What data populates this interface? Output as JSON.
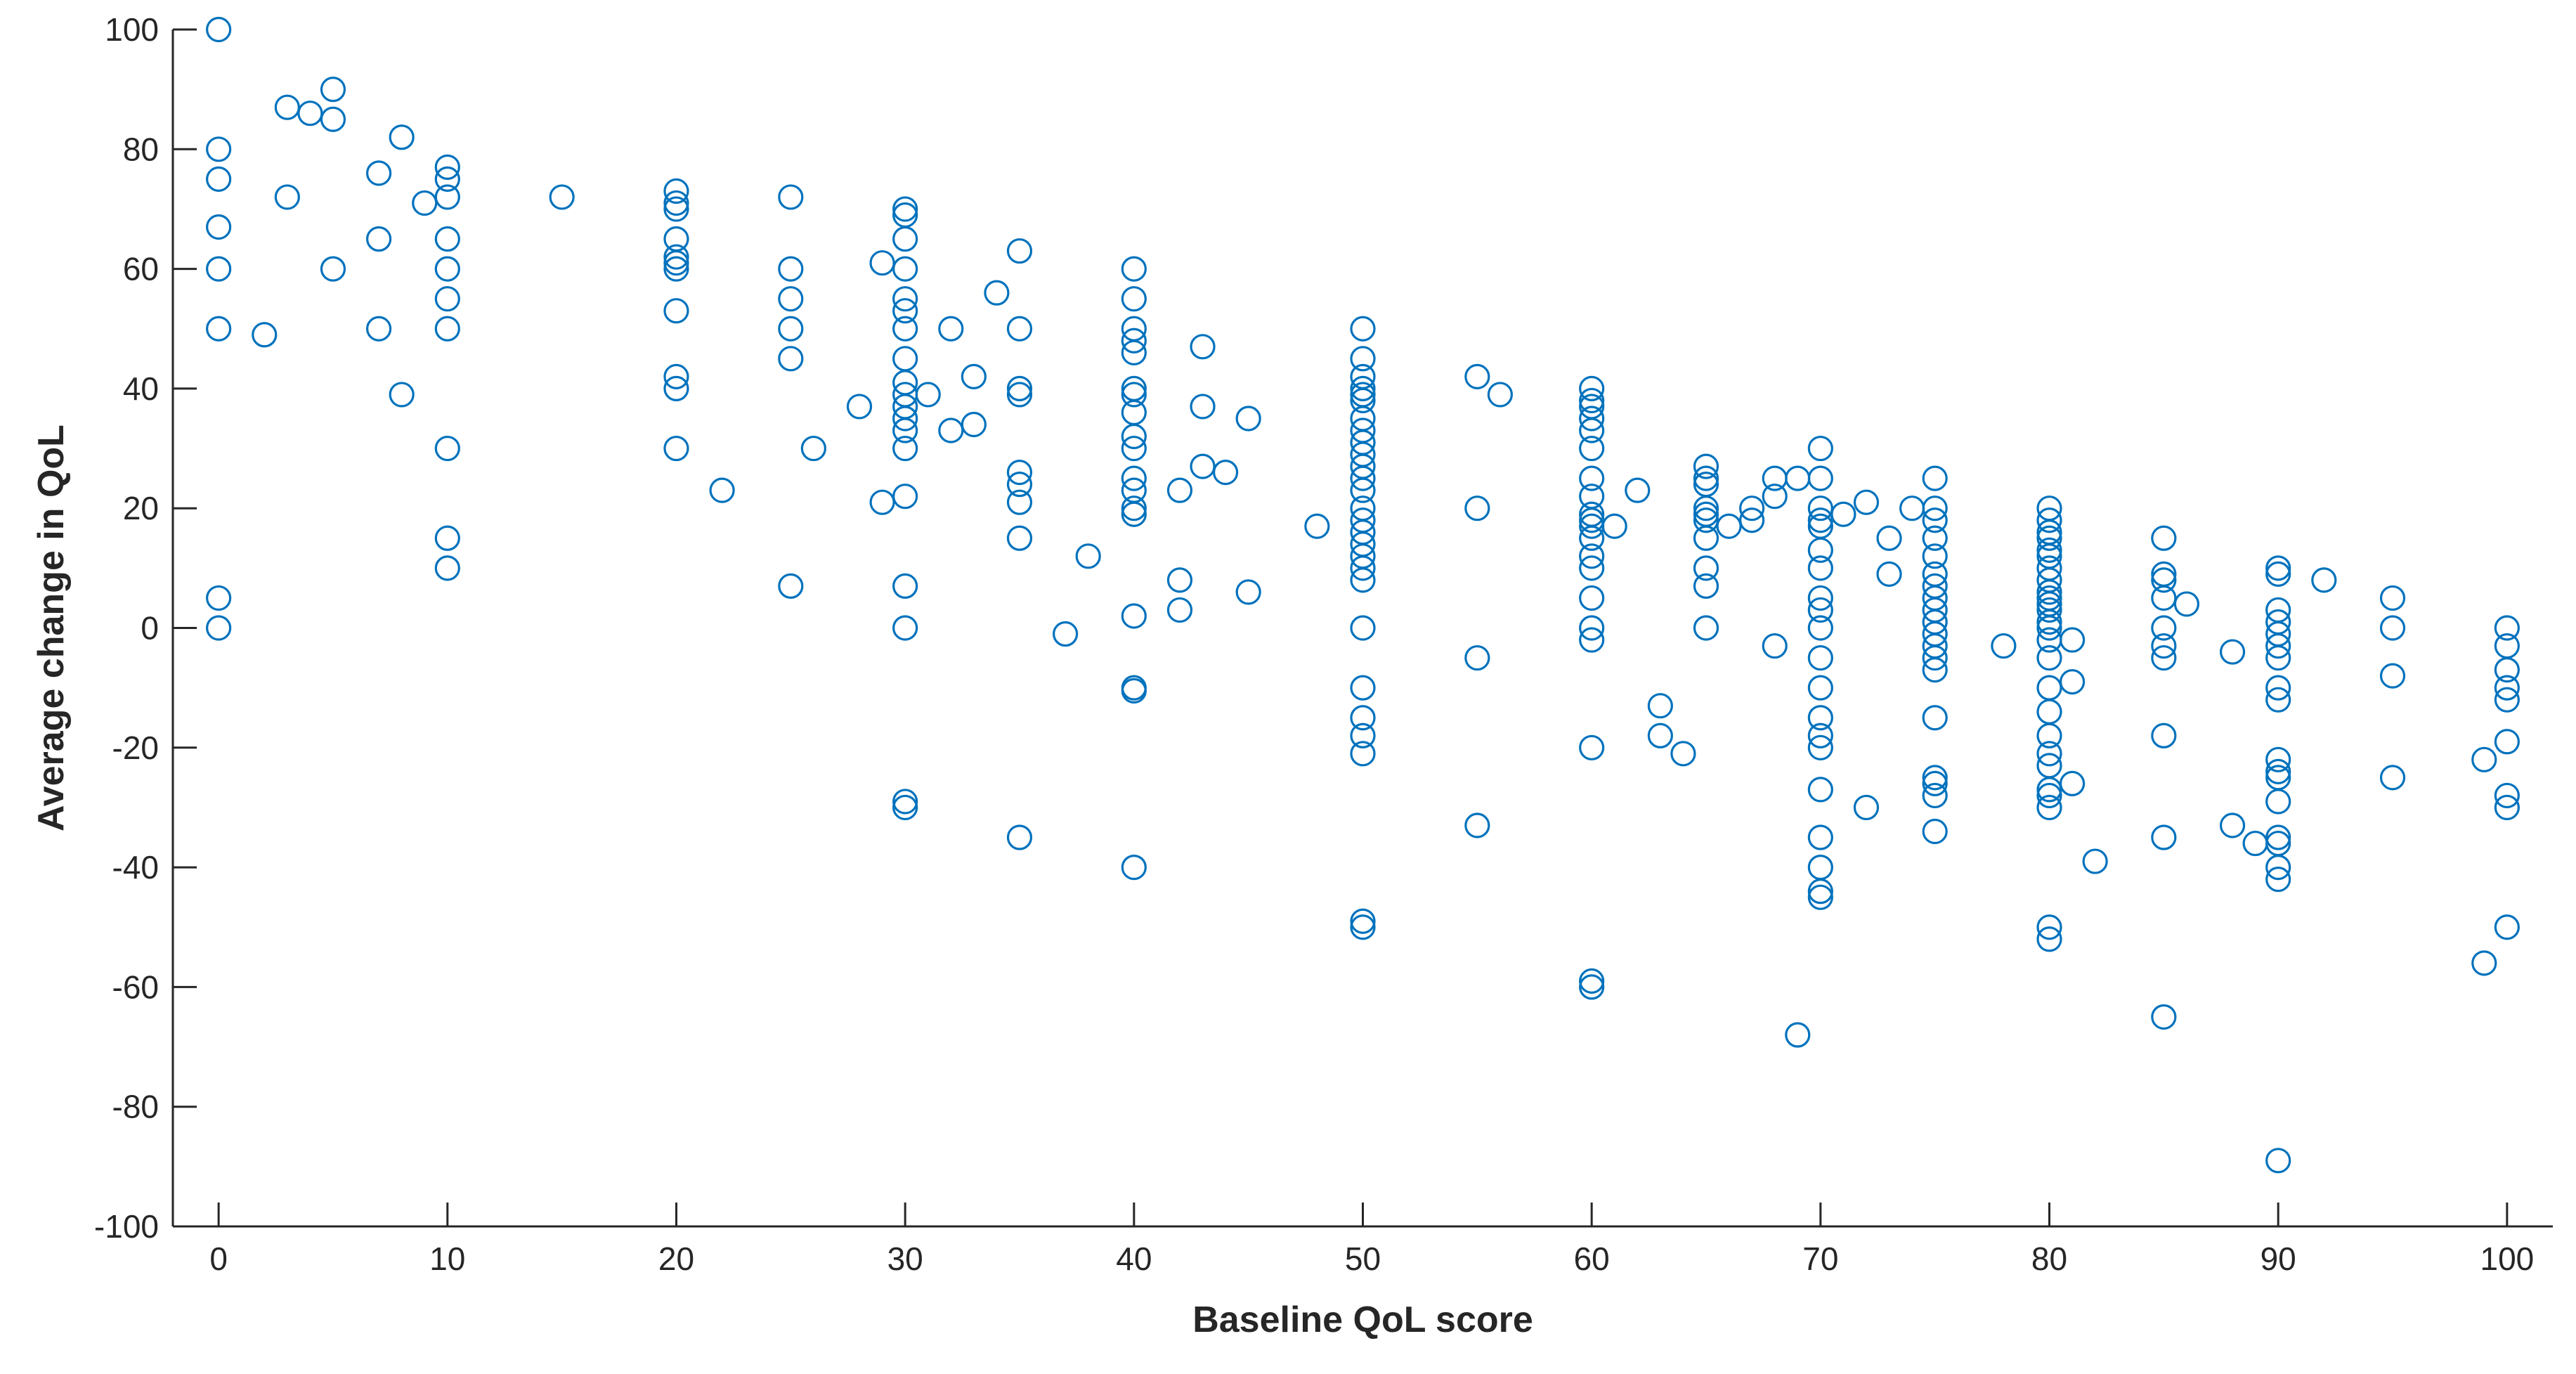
{
  "chart_data": {
    "type": "scatter",
    "title": "",
    "xlabel": "Baseline QoL score",
    "ylabel": "Average change in QoL",
    "xlim": [
      -2,
      102
    ],
    "ylim": [
      -100,
      100
    ],
    "x_ticks": [
      0,
      10,
      20,
      30,
      40,
      50,
      60,
      70,
      80,
      90,
      100
    ],
    "y_ticks": [
      100,
      80,
      60,
      40,
      20,
      0,
      -20,
      -40,
      -60,
      -80,
      -100
    ],
    "x_tick_labels": [
      "0",
      "10",
      "20",
      "30",
      "40",
      "50",
      "60",
      "70",
      "80",
      "90",
      "100"
    ],
    "y_tick_labels": [
      "100",
      "80",
      "60",
      "40",
      "20",
      "0",
      "-20",
      "-40",
      "-60",
      "-80",
      "-100"
    ],
    "grid": false,
    "legend": "none",
    "marker": "open-circle",
    "color": "#0072BD",
    "series": [
      {
        "points": [
          [
            0,
            100
          ],
          [
            0,
            80
          ],
          [
            0,
            75
          ],
          [
            0,
            67
          ],
          [
            0,
            60
          ],
          [
            0,
            50
          ],
          [
            0,
            5
          ],
          [
            0,
            0
          ],
          [
            2,
            49
          ],
          [
            3,
            87
          ],
          [
            3,
            72
          ],
          [
            4,
            86
          ],
          [
            5,
            90
          ],
          [
            5,
            85
          ],
          [
            5,
            60
          ],
          [
            7,
            76
          ],
          [
            7,
            65
          ],
          [
            7,
            50
          ],
          [
            8,
            82
          ],
          [
            8,
            39
          ],
          [
            9,
            71
          ],
          [
            10,
            77
          ],
          [
            10,
            75
          ],
          [
            10,
            72
          ],
          [
            10,
            65
          ],
          [
            10,
            60
          ],
          [
            10,
            55
          ],
          [
            10,
            50
          ],
          [
            10,
            30
          ],
          [
            10,
            15
          ],
          [
            10,
            10
          ],
          [
            15,
            72
          ],
          [
            20,
            73
          ],
          [
            20,
            71
          ],
          [
            20,
            70
          ],
          [
            20,
            65
          ],
          [
            20,
            62
          ],
          [
            20,
            61
          ],
          [
            20,
            60
          ],
          [
            20,
            53
          ],
          [
            20,
            42
          ],
          [
            20,
            40
          ],
          [
            20,
            30
          ],
          [
            22,
            23
          ],
          [
            25,
            72
          ],
          [
            25,
            60
          ],
          [
            25,
            55
          ],
          [
            25,
            50
          ],
          [
            25,
            45
          ],
          [
            25,
            7
          ],
          [
            26,
            30
          ],
          [
            28,
            37
          ],
          [
            29,
            61
          ],
          [
            29,
            21
          ],
          [
            30,
            70
          ],
          [
            30,
            69
          ],
          [
            30,
            65
          ],
          [
            30,
            60
          ],
          [
            30,
            55
          ],
          [
            30,
            53
          ],
          [
            30,
            50
          ],
          [
            30,
            45
          ],
          [
            30,
            41
          ],
          [
            30,
            39
          ],
          [
            30,
            37
          ],
          [
            30,
            35
          ],
          [
            30,
            33
          ],
          [
            30,
            30
          ],
          [
            30,
            22
          ],
          [
            30,
            7
          ],
          [
            30,
            0
          ],
          [
            30,
            -29
          ],
          [
            30,
            -30
          ],
          [
            31,
            39
          ],
          [
            32,
            50
          ],
          [
            32,
            33
          ],
          [
            33,
            42
          ],
          [
            33,
            34
          ],
          [
            34,
            56
          ],
          [
            35,
            63
          ],
          [
            35,
            50
          ],
          [
            35,
            40
          ],
          [
            35,
            39
          ],
          [
            35,
            26
          ],
          [
            35,
            24
          ],
          [
            35,
            21
          ],
          [
            35,
            15
          ],
          [
            35,
            -35
          ],
          [
            37,
            -1
          ],
          [
            38,
            12
          ],
          [
            40,
            60
          ],
          [
            40,
            55
          ],
          [
            40,
            50
          ],
          [
            40,
            48
          ],
          [
            40,
            46
          ],
          [
            40,
            40
          ],
          [
            40,
            39
          ],
          [
            40,
            36
          ],
          [
            40,
            32
          ],
          [
            40,
            30
          ],
          [
            40,
            25
          ],
          [
            40,
            23
          ],
          [
            40,
            20
          ],
          [
            40,
            19
          ],
          [
            40,
            2
          ],
          [
            40,
            -10
          ],
          [
            40,
            -10.5
          ],
          [
            40,
            -40
          ],
          [
            42,
            23
          ],
          [
            42,
            8
          ],
          [
            42,
            3
          ],
          [
            43,
            47
          ],
          [
            43,
            37
          ],
          [
            43,
            27
          ],
          [
            44,
            26
          ],
          [
            45,
            35
          ],
          [
            45,
            6
          ],
          [
            48,
            17
          ],
          [
            50,
            50
          ],
          [
            50,
            45
          ],
          [
            50,
            42
          ],
          [
            50,
            40
          ],
          [
            50,
            39
          ],
          [
            50,
            38
          ],
          [
            50,
            35
          ],
          [
            50,
            33
          ],
          [
            50,
            31
          ],
          [
            50,
            29
          ],
          [
            50,
            27
          ],
          [
            50,
            25
          ],
          [
            50,
            23
          ],
          [
            50,
            20
          ],
          [
            50,
            18
          ],
          [
            50,
            16
          ],
          [
            50,
            14
          ],
          [
            50,
            12
          ],
          [
            50,
            10
          ],
          [
            50,
            8
          ],
          [
            50,
            0
          ],
          [
            50,
            -10
          ],
          [
            50,
            -15
          ],
          [
            50,
            -18
          ],
          [
            50,
            -21
          ],
          [
            50,
            -49
          ],
          [
            50,
            -50
          ],
          [
            55,
            42
          ],
          [
            55,
            20
          ],
          [
            55,
            -5
          ],
          [
            55,
            -33
          ],
          [
            56,
            39
          ],
          [
            60,
            40
          ],
          [
            60,
            38
          ],
          [
            60,
            37
          ],
          [
            60,
            35
          ],
          [
            60,
            33
          ],
          [
            60,
            30
          ],
          [
            60,
            25
          ],
          [
            60,
            22
          ],
          [
            60,
            19
          ],
          [
            60,
            18
          ],
          [
            60,
            17
          ],
          [
            60,
            15
          ],
          [
            60,
            12
          ],
          [
            60,
            10
          ],
          [
            60,
            5
          ],
          [
            60,
            0
          ],
          [
            60,
            -2
          ],
          [
            60,
            -20
          ],
          [
            60,
            -59
          ],
          [
            60,
            -60
          ],
          [
            61,
            17
          ],
          [
            62,
            23
          ],
          [
            63,
            -13
          ],
          [
            63,
            -18
          ],
          [
            64,
            -21
          ],
          [
            65,
            27
          ],
          [
            65,
            25
          ],
          [
            65,
            24
          ],
          [
            65,
            20
          ],
          [
            65,
            19
          ],
          [
            65,
            18
          ],
          [
            65,
            15
          ],
          [
            65,
            10
          ],
          [
            65,
            7
          ],
          [
            65,
            0
          ],
          [
            66,
            17
          ],
          [
            67,
            20
          ],
          [
            67,
            18
          ],
          [
            68,
            25
          ],
          [
            68,
            22
          ],
          [
            68,
            -3
          ],
          [
            69,
            25
          ],
          [
            69,
            -68
          ],
          [
            70,
            30
          ],
          [
            70,
            25
          ],
          [
            70,
            20
          ],
          [
            70,
            18
          ],
          [
            70,
            17
          ],
          [
            70,
            13
          ],
          [
            70,
            10
          ],
          [
            70,
            5
          ],
          [
            70,
            3
          ],
          [
            70,
            0
          ],
          [
            70,
            -5
          ],
          [
            70,
            -10
          ],
          [
            70,
            -15
          ],
          [
            70,
            -18
          ],
          [
            70,
            -20
          ],
          [
            70,
            -27
          ],
          [
            70,
            -35
          ],
          [
            70,
            -40
          ],
          [
            70,
            -44
          ],
          [
            70,
            -45
          ],
          [
            71,
            19
          ],
          [
            72,
            21
          ],
          [
            72,
            -30
          ],
          [
            73,
            15
          ],
          [
            73,
            9
          ],
          [
            74,
            20
          ],
          [
            75,
            25
          ],
          [
            75,
            20
          ],
          [
            75,
            18
          ],
          [
            75,
            15
          ],
          [
            75,
            12
          ],
          [
            75,
            9
          ],
          [
            75,
            7
          ],
          [
            75,
            5
          ],
          [
            75,
            3
          ],
          [
            75,
            1
          ],
          [
            75,
            -1
          ],
          [
            75,
            -3
          ],
          [
            75,
            -5
          ],
          [
            75,
            -7
          ],
          [
            75,
            -15
          ],
          [
            75,
            -25
          ],
          [
            75,
            -26
          ],
          [
            75,
            -28
          ],
          [
            75,
            -34
          ],
          [
            78,
            -3
          ],
          [
            80,
            20
          ],
          [
            80,
            18
          ],
          [
            80,
            16
          ],
          [
            80,
            15
          ],
          [
            80,
            13
          ],
          [
            80,
            12
          ],
          [
            80,
            10
          ],
          [
            80,
            8
          ],
          [
            80,
            6
          ],
          [
            80,
            5
          ],
          [
            80,
            4
          ],
          [
            80,
            3
          ],
          [
            80,
            1
          ],
          [
            80,
            0
          ],
          [
            80,
            -2
          ],
          [
            80,
            -5
          ],
          [
            80,
            -10
          ],
          [
            80,
            -14
          ],
          [
            80,
            -18
          ],
          [
            80,
            -21
          ],
          [
            80,
            -23
          ],
          [
            80,
            -27
          ],
          [
            80,
            -28
          ],
          [
            80,
            -30
          ],
          [
            80,
            -50
          ],
          [
            80,
            -52
          ],
          [
            81,
            -2
          ],
          [
            81,
            -9
          ],
          [
            81,
            -26
          ],
          [
            82,
            -39
          ],
          [
            85,
            15
          ],
          [
            85,
            9
          ],
          [
            85,
            8
          ],
          [
            85,
            5
          ],
          [
            85,
            0
          ],
          [
            85,
            -3
          ],
          [
            85,
            -5
          ],
          [
            85,
            -18
          ],
          [
            85,
            -35
          ],
          [
            85,
            -65
          ],
          [
            86,
            4
          ],
          [
            88,
            -4
          ],
          [
            88,
            -33
          ],
          [
            89,
            -36
          ],
          [
            90,
            10
          ],
          [
            90,
            9
          ],
          [
            90,
            3
          ],
          [
            90,
            1
          ],
          [
            90,
            -1
          ],
          [
            90,
            -3
          ],
          [
            90,
            -5
          ],
          [
            90,
            -10
          ],
          [
            90,
            -12
          ],
          [
            90,
            -22
          ],
          [
            90,
            -24
          ],
          [
            90,
            -25
          ],
          [
            90,
            -29
          ],
          [
            90,
            -35
          ],
          [
            90,
            -36
          ],
          [
            90,
            -40
          ],
          [
            90,
            -42
          ],
          [
            90,
            -89
          ],
          [
            92,
            8
          ],
          [
            95,
            5
          ],
          [
            95,
            0
          ],
          [
            95,
            -8
          ],
          [
            95,
            -25
          ],
          [
            99,
            -22
          ],
          [
            99,
            -56
          ],
          [
            100,
            0
          ],
          [
            100,
            -3
          ],
          [
            100,
            -7
          ],
          [
            100,
            -10
          ],
          [
            100,
            -12
          ],
          [
            100,
            -19
          ],
          [
            100,
            -28
          ],
          [
            100,
            -30
          ],
          [
            100,
            -50
          ]
        ]
      }
    ]
  }
}
